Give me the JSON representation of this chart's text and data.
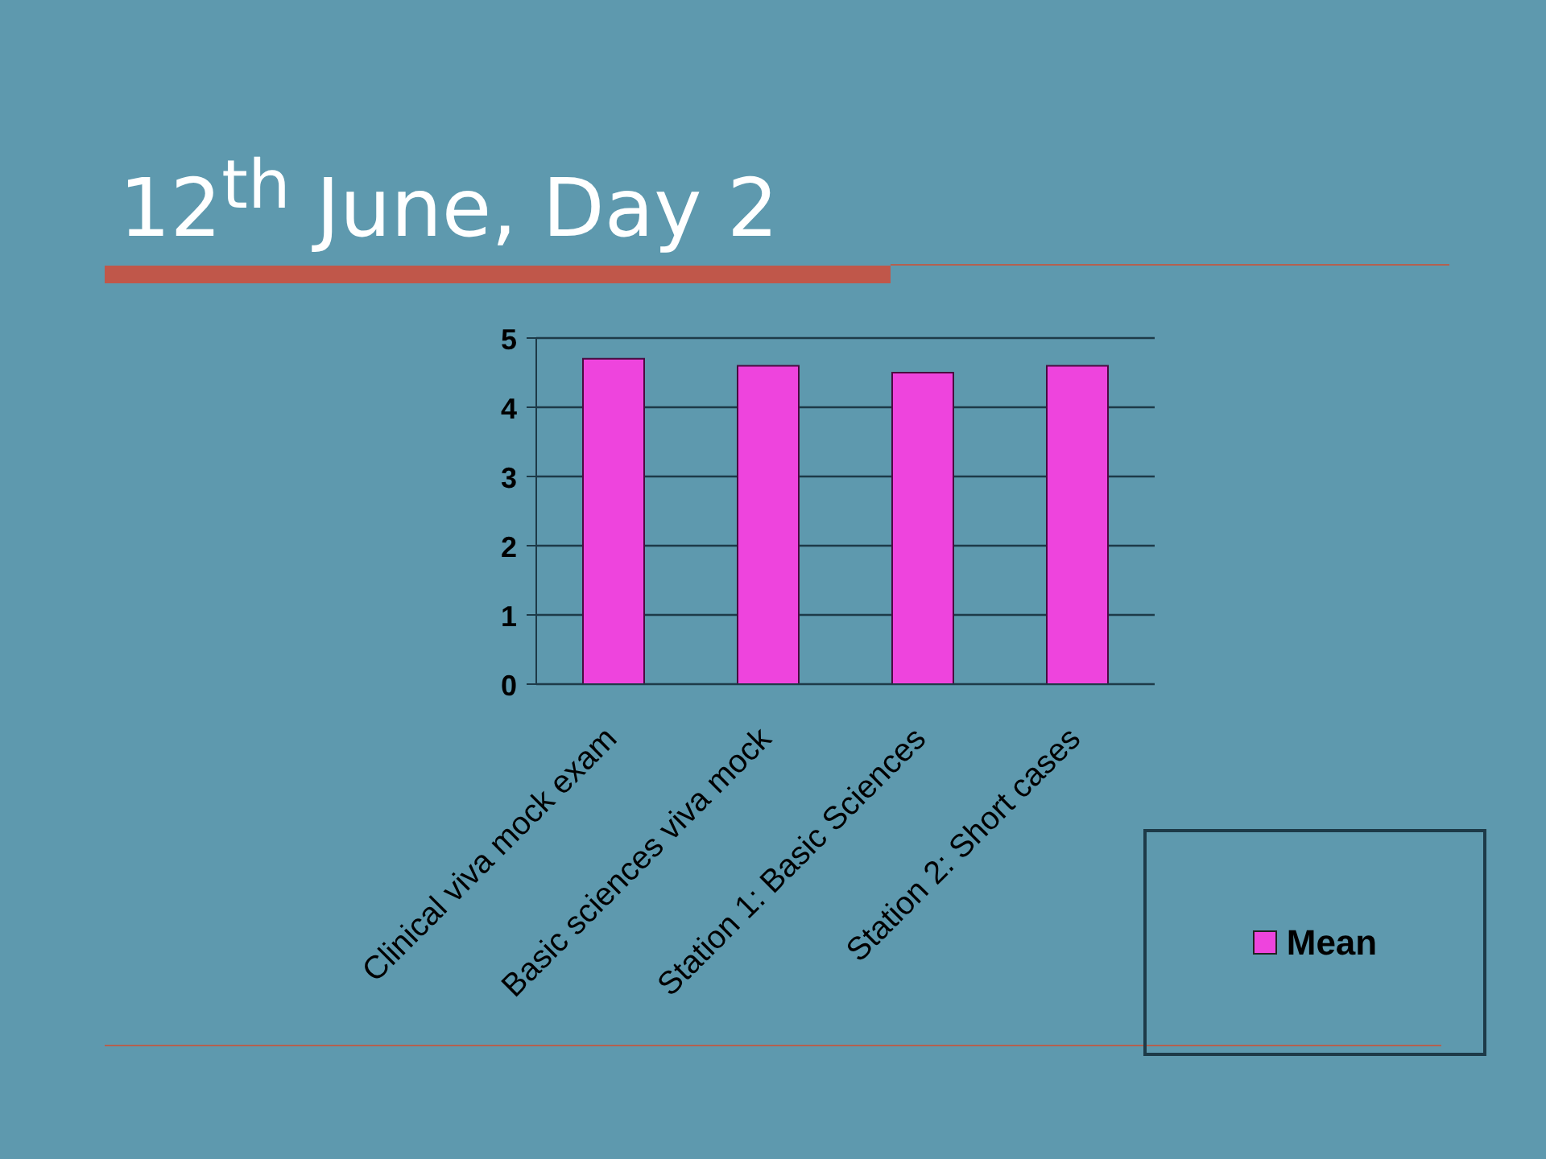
{
  "chart_data": {
    "type": "bar",
    "title": "12$^{th}$ June, Day 2",
    "categories": [
      "Clinical viva mock exam",
      "Basic sciences viva mock",
      "Station 1: Basic Sciences",
      "Station 2: Short cases"
    ],
    "series": [
      {
        "name": "Mean",
        "color": "#ee44dd",
        "values": [
          4.7,
          4.6,
          4.5,
          4.6
        ]
      }
    ],
    "ylim": [
      0,
      5
    ],
    "yticks": [
      0,
      1,
      2,
      3,
      4,
      5
    ],
    "grid": "y",
    "legend": "bottom right"
  }
}
